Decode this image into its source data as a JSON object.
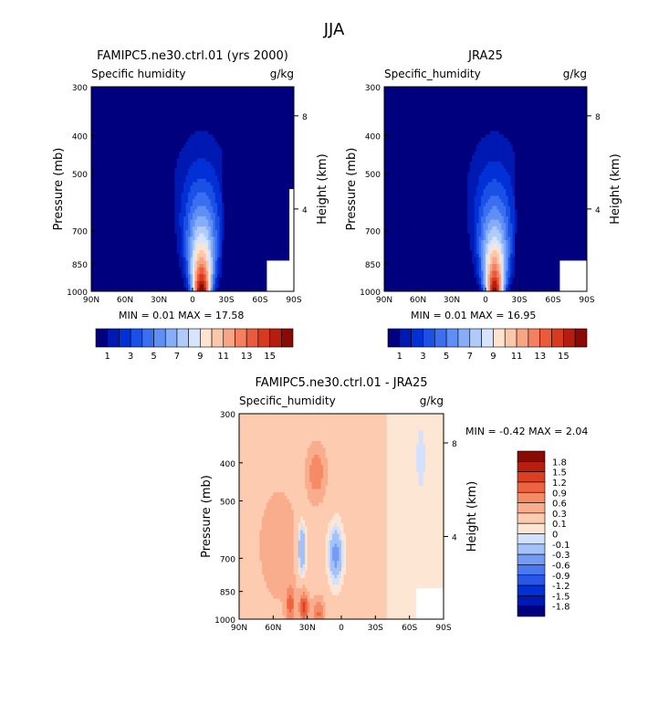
{
  "title": "JJA",
  "chart_data": [
    {
      "type": "heatmap",
      "title": "FAMIPC5.ne30.ctrl.01 (yrs 2000)",
      "subtitle_left": "Specific humidity",
      "subtitle_right": "g/kg",
      "ylabel": "Pressure (mb)",
      "ylabel_right": "Height (km)",
      "x_ticks": [
        "90N",
        "60N",
        "30N",
        "0",
        "30S",
        "60S",
        "90S"
      ],
      "y_ticks": [
        "300",
        "400",
        "500",
        "700",
        "850",
        "1000"
      ],
      "y_ticks_right": [
        "8",
        "4"
      ],
      "stats": {
        "min_label": "MIN =",
        "min": "0.01",
        "max_label": "MAX =",
        "max": "17.58"
      },
      "peak_lat": -8,
      "peak_value": 17.58,
      "colorbar_labels": [
        "1",
        "3",
        "5",
        "7",
        "9",
        "11",
        "13",
        "15"
      ]
    },
    {
      "type": "heatmap",
      "title": "JRA25",
      "subtitle_left": "Specific_humidity",
      "subtitle_right": "g/kg",
      "ylabel": "Pressure (mb)",
      "ylabel_right": "Height (km)",
      "x_ticks": [
        "90N",
        "60N",
        "30N",
        "0",
        "30S",
        "60S",
        "90S"
      ],
      "y_ticks": [
        "300",
        "400",
        "500",
        "700",
        "850",
        "1000"
      ],
      "y_ticks_right": [
        "8",
        "4"
      ],
      "stats": {
        "min_label": "MIN =",
        "min": "0.01",
        "max_label": "MAX =",
        "max": "16.95"
      },
      "peak_lat": -8,
      "peak_value": 16.95,
      "colorbar_labels": [
        "1",
        "3",
        "5",
        "7",
        "9",
        "11",
        "13",
        "15"
      ]
    },
    {
      "type": "heatmap",
      "title": "FAMIPC5.ne30.ctrl.01 - JRA25",
      "subtitle_left": "Specific_humidity",
      "subtitle_right": "g/kg",
      "ylabel": "Pressure (mb)",
      "ylabel_right": "Height (km)",
      "x_ticks": [
        "90N",
        "60N",
        "30N",
        "0",
        "30S",
        "60S",
        "90S"
      ],
      "y_ticks": [
        "300",
        "400",
        "500",
        "700",
        "850",
        "1000"
      ],
      "y_ticks_right": [
        "8",
        "4"
      ],
      "stats": {
        "min_label": "MIN =",
        "min": "-0.42",
        "max_label": "MAX =",
        "max": "2.04"
      },
      "colorbar_labels": [
        "1.8",
        "1.5",
        "1.2",
        "0.9",
        "0.6",
        "0.3",
        "0.1",
        "0",
        "-0.1",
        "-0.3",
        "-0.6",
        "-0.9",
        "-1.2",
        "-1.5",
        "-1.8"
      ]
    }
  ],
  "colors": {
    "humidity_scale": [
      "#00007f",
      "#0019b2",
      "#0030d6",
      "#1b50e6",
      "#3b6ff0",
      "#5f8ff5",
      "#86aef8",
      "#b0cbfa",
      "#d6e4fc",
      "#fde3d0",
      "#fbc7ab",
      "#f8a584",
      "#f4805f",
      "#ec5a3c",
      "#d93a1f",
      "#b51e0e",
      "#8a0a05"
    ],
    "diff_scale": [
      "#00007f",
      "#0019b2",
      "#0030d6",
      "#2756e8",
      "#4a78f0",
      "#749cf5",
      "#a4c1f9",
      "#d3e1fc",
      "#fde6d4",
      "#fccbb0",
      "#f9ad8c",
      "#f58a66",
      "#ee6441",
      "#dc3e21",
      "#b81e0e",
      "#8a0a05"
    ]
  }
}
